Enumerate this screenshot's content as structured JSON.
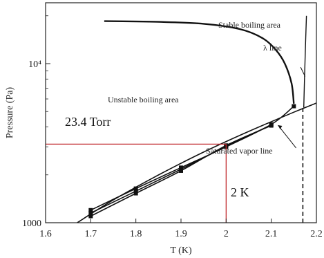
{
  "chart_data": {
    "type": "line",
    "xlabel": "T (K)",
    "ylabel": "Pressure (Pa)",
    "xlim": [
      1.6,
      2.2
    ],
    "ylim": [
      1000,
      20000
    ],
    "yscale": "log",
    "grid": false,
    "x_ticks": [
      1.6,
      1.7,
      1.8,
      1.9,
      2.0,
      2.1,
      2.2
    ],
    "x_tick_labels": [
      "1.6",
      "1.7",
      "1.8",
      "1.9",
      "2",
      "2.1",
      "2.2"
    ],
    "y_tick_labels": [
      {
        "value": 1000,
        "text": "1000"
      },
      {
        "value": 10000,
        "text": "10⁴"
      }
    ],
    "annotations": {
      "stable_boiling": "Stable boiling area",
      "lambda_line": "λ line",
      "unstable_boiling": "Unstable boiling area",
      "saturated_vapor": "Saturated vapor line"
    },
    "callouts": {
      "pressure_label": "23.4 Torr",
      "pressure_value": 3120,
      "temperature_label": "2 K",
      "temperature_value": 2.0
    },
    "series": [
      {
        "role": "boundary",
        "x": [
          1.73,
          1.85,
          1.95,
          2.03,
          2.08,
          2.11,
          2.13,
          2.145,
          2.15
        ],
        "y": [
          18500,
          18300,
          17800,
          16500,
          14500,
          12200,
          10000,
          7500,
          5600
        ],
        "markers": false
      },
      {
        "role": "saturated_vapor",
        "x": [
          1.67,
          1.75,
          1.85,
          1.95,
          2.05,
          2.15,
          2.2
        ],
        "y": [
          1000,
          1390,
          1995,
          2780,
          3750,
          4950,
          5650
        ],
        "markers": false
      },
      {
        "role": "lambda",
        "x": [
          2.172,
          2.175,
          2.178
        ],
        "y": [
          5300,
          11000,
          20000
        ],
        "markers": false
      },
      {
        "role": "dashed_lambda",
        "x": [
          2.17,
          2.17
        ],
        "y": [
          1000,
          5300
        ],
        "markers": false,
        "dashed": true
      },
      {
        "role": "measured",
        "x": [
          1.7,
          1.8,
          1.9,
          2.0,
          2.1,
          2.15
        ],
        "y": [
          1200,
          1640,
          2220,
          3000,
          4150,
          5400
        ],
        "markers": true
      },
      {
        "role": "measured",
        "x": [
          1.7,
          1.8,
          1.9,
          2.0,
          2.1
        ],
        "y": [
          1150,
          1580,
          2170,
          3020,
          4120
        ],
        "markers": true
      },
      {
        "role": "measured",
        "x": [
          1.7,
          1.8,
          1.9,
          2.0,
          2.1
        ],
        "y": [
          1100,
          1530,
          2120,
          3060,
          4080
        ],
        "markers": true
      }
    ],
    "colors": {
      "curves": "#111111",
      "callout": "#c0282d",
      "axes": "#222222"
    }
  }
}
